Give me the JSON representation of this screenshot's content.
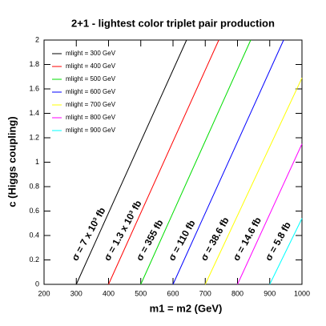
{
  "chart_data": {
    "type": "line",
    "title": "2+1 - lightest color triplet pair production",
    "x_label": "m1 = m2 (GeV)",
    "y_label": "c (Higgs coupling)",
    "xlim": [
      200,
      1000
    ],
    "ylim": [
      0,
      2
    ],
    "xticks": [
      200,
      300,
      400,
      500,
      600,
      700,
      800,
      900,
      1000
    ],
    "yticks": [
      0,
      0.2,
      0.4,
      0.6,
      0.8,
      1,
      1.2,
      1.4,
      1.6,
      1.8,
      2
    ],
    "series": [
      {
        "name": "mlight = 300 GeV",
        "color": "#000000",
        "x": [
          300,
          642
        ],
        "values": [
          0,
          2
        ]
      },
      {
        "name": "mlight = 400 GeV",
        "color": "#ff0000",
        "x": [
          400,
          742
        ],
        "values": [
          0,
          2
        ]
      },
      {
        "name": "mlight = 500 GeV",
        "color": "#00dd00",
        "x": [
          500,
          841
        ],
        "values": [
          0,
          2
        ]
      },
      {
        "name": "mlight = 600 GeV",
        "color": "#0000ff",
        "x": [
          600,
          943
        ],
        "values": [
          0,
          2
        ]
      },
      {
        "name": "mlight = 700 GeV",
        "color": "#ffff00",
        "x": [
          700,
          1000
        ],
        "values": [
          0,
          1.69
        ]
      },
      {
        "name": "mlight = 800 GeV",
        "color": "#ff00ff",
        "x": [
          800,
          1000
        ],
        "values": [
          0,
          1.15
        ]
      },
      {
        "name": "mlight = 900 GeV",
        "color": "#00ffff",
        "x": [
          900,
          1000
        ],
        "values": [
          0,
          0.54
        ]
      }
    ],
    "annotations": [
      "σ = 7 x 10³ fb",
      "σ = 1.3 x 10³ fb",
      "σ = 355 fb",
      "σ = 110 fb",
      "σ = 38.6 fb",
      "σ = 14.6 fb",
      "σ = 5.8 fb"
    ]
  }
}
